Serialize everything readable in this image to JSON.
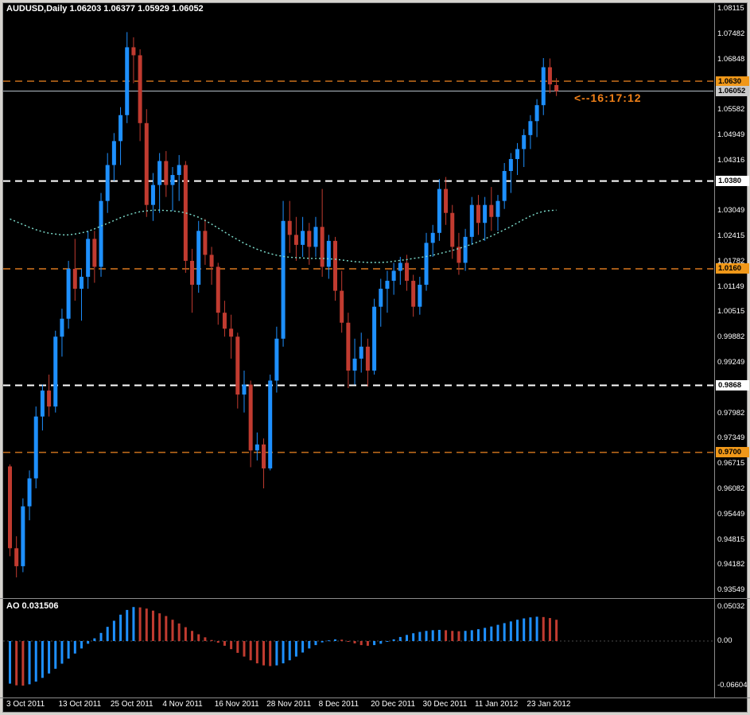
{
  "header": {
    "text": "AUDUSD,Daily  1.06203 1.06377 1.05929 1.06052"
  },
  "annotation": {
    "text": "<--16:17:12"
  },
  "ao_panel": {
    "label": "AO 0.031506",
    "axis_labels": [
      {
        "text": "0.05032",
        "value": 0.05032
      },
      {
        "text": "0.00",
        "value": 0
      },
      {
        "text": "-0.06604",
        "value": -0.06604
      }
    ]
  },
  "price_axis": {
    "plain_labels": [
      {
        "text": "1.08115",
        "value": 1.08115
      },
      {
        "text": "1.07482",
        "value": 1.07482
      },
      {
        "text": "1.06848",
        "value": 1.06848
      },
      {
        "text": "1.05582",
        "value": 1.05582
      },
      {
        "text": "1.04949",
        "value": 1.04949
      },
      {
        "text": "1.04316",
        "value": 1.04316
      },
      {
        "text": "1.03049",
        "value": 1.03049
      },
      {
        "text": "1.02415",
        "value": 1.02415
      },
      {
        "text": "1.01782",
        "value": 1.01782
      },
      {
        "text": "1.01149",
        "value": 1.01149
      },
      {
        "text": "1.00515",
        "value": 1.00515
      },
      {
        "text": "0.99882",
        "value": 0.99882
      },
      {
        "text": "0.99249",
        "value": 0.99249
      },
      {
        "text": "0.97982",
        "value": 0.97982
      },
      {
        "text": "0.97349",
        "value": 0.97349
      },
      {
        "text": "0.96715",
        "value": 0.96715
      },
      {
        "text": "0.96082",
        "value": 0.96082
      },
      {
        "text": "0.95449",
        "value": 0.95449
      },
      {
        "text": "0.94815",
        "value": 0.94815
      },
      {
        "text": "0.94182",
        "value": 0.94182
      },
      {
        "text": "0.93549",
        "value": 0.93549
      }
    ],
    "badges": [
      {
        "text": "1.0630",
        "value": 1.063,
        "bg": "#f09819"
      },
      {
        "text": "1.06052",
        "value": 1.06052,
        "bg": "#c9c9c9"
      },
      {
        "text": "1.0380",
        "value": 1.038,
        "bg": "#ffffff"
      },
      {
        "text": "1.0160",
        "value": 1.016,
        "bg": "#f09819"
      },
      {
        "text": "0.9868",
        "value": 0.9868,
        "bg": "#ffffff"
      },
      {
        "text": "0.9700",
        "value": 0.97,
        "bg": "#f09819"
      }
    ]
  },
  "date_axis": {
    "labels": [
      {
        "text": "3 Oct 2011",
        "bar": 0
      },
      {
        "text": "13 Oct 2011",
        "bar": 8
      },
      {
        "text": "25 Oct 2011",
        "bar": 16
      },
      {
        "text": "4 Nov 2011",
        "bar": 24
      },
      {
        "text": "16 Nov 2011",
        "bar": 32
      },
      {
        "text": "28 Nov 2011",
        "bar": 40
      },
      {
        "text": "8 Dec 2011",
        "bar": 48
      },
      {
        "text": "20 Dec 2011",
        "bar": 56
      },
      {
        "text": "30 Dec 2011",
        "bar": 64
      },
      {
        "text": "11 Jan 2012",
        "bar": 72
      },
      {
        "text": "23 Jan 2012",
        "bar": 80
      }
    ]
  },
  "colors": {
    "background": "#000000",
    "bull": "#1e90ff",
    "bear": "#c13b30",
    "ma": "#7fe0cf",
    "orange_line": "#d9791f",
    "white_line": "#ffffff",
    "price_line": "#b5c0c9",
    "axis_text": "#ffffff",
    "separator": "#8c8c8c",
    "frame": "#d6d3ce"
  },
  "chart_data": {
    "type": "candlestick",
    "symbol": "AUDUSD",
    "timeframe": "Daily",
    "title": "AUDUSD,Daily",
    "ohlc_display": {
      "open": "1.06203",
      "high": "1.06377",
      "low": "1.05929",
      "close": "1.06052"
    },
    "y_range": [
      0.93549,
      1.08115
    ],
    "x_labels": [
      "3 Oct 2011",
      "13 Oct 2011",
      "25 Oct 2011",
      "4 Nov 2011",
      "16 Nov 2011",
      "28 Nov 2011",
      "8 Dec 2011",
      "20 Dec 2011",
      "30 Dec 2011",
      "11 Jan 2012",
      "23 Jan 2012"
    ],
    "current_price": 1.06052,
    "levels": [
      {
        "value": 1.063,
        "style": "dashed",
        "color": "orange"
      },
      {
        "value": 1.038,
        "style": "dashed",
        "color": "white"
      },
      {
        "value": 1.016,
        "style": "dashed",
        "color": "orange"
      },
      {
        "value": 0.9868,
        "style": "dashed",
        "color": "white"
      },
      {
        "value": 0.97,
        "style": "dashed",
        "color": "orange"
      }
    ],
    "candles": [
      [
        0.9665,
        0.967,
        0.944,
        0.946
      ],
      [
        0.946,
        0.949,
        0.9387,
        0.9415
      ],
      [
        0.9415,
        0.9585,
        0.94,
        0.9565
      ],
      [
        0.9565,
        0.9655,
        0.953,
        0.9635
      ],
      [
        0.9635,
        0.9815,
        0.961,
        0.979
      ],
      [
        0.979,
        0.987,
        0.9755,
        0.9855
      ],
      [
        0.9855,
        0.9895,
        0.979,
        0.9815
      ],
      [
        0.9815,
        1.0005,
        0.98,
        0.999
      ],
      [
        0.999,
        1.006,
        0.994,
        1.0035
      ],
      [
        1.0035,
        1.018,
        1.001,
        1.016
      ],
      [
        1.016,
        1.0235,
        1.008,
        1.011
      ],
      [
        1.011,
        1.016,
        1.003,
        1.014
      ],
      [
        1.014,
        1.0255,
        1.011,
        1.0235
      ],
      [
        1.0235,
        1.0255,
        1.0125,
        1.0165
      ],
      [
        1.0165,
        1.035,
        1.014,
        1.033
      ],
      [
        1.033,
        1.045,
        1.03,
        1.042
      ],
      [
        1.042,
        1.05,
        1.038,
        1.048
      ],
      [
        1.048,
        1.0565,
        1.042,
        1.0545
      ],
      [
        1.0545,
        1.0753,
        1.0525,
        1.0715
      ],
      [
        1.0715,
        1.074,
        1.0625,
        1.0695
      ],
      [
        1.0695,
        1.071,
        1.048,
        1.0525
      ],
      [
        1.0525,
        1.056,
        1.029,
        1.032
      ],
      [
        1.032,
        1.04,
        1.028,
        1.037
      ],
      [
        1.037,
        1.045,
        1.03,
        1.043
      ],
      [
        1.043,
        1.0455,
        1.034,
        1.037
      ],
      [
        1.037,
        1.0415,
        1.0305,
        1.0395
      ],
      [
        1.0395,
        1.0445,
        1.033,
        1.042
      ],
      [
        1.042,
        1.043,
        1.015,
        1.018
      ],
      [
        1.018,
        1.021,
        1.005,
        1.012
      ],
      [
        1.012,
        1.028,
        1.01,
        1.0255
      ],
      [
        1.0255,
        1.0285,
        1.017,
        1.0195
      ],
      [
        1.0195,
        1.0215,
        1.012,
        1.0165
      ],
      [
        1.0165,
        1.0175,
        1.002,
        1.005
      ],
      [
        1.005,
        1.008,
        0.999,
        1.001
      ],
      [
        1.001,
        1.0045,
        0.9935,
        0.999
      ],
      [
        0.999,
        1.0,
        0.981,
        0.9845
      ],
      [
        0.9845,
        0.9905,
        0.98,
        0.987
      ],
      [
        0.987,
        0.988,
        0.9663,
        0.9705
      ],
      [
        0.9705,
        0.975,
        0.968,
        0.972
      ],
      [
        0.972,
        0.9735,
        0.961,
        0.966
      ],
      [
        0.966,
        0.9895,
        0.9655,
        0.988
      ],
      [
        0.988,
        1.0015,
        0.985,
        0.9985
      ],
      [
        0.9985,
        1.033,
        0.9965,
        1.028
      ],
      [
        1.028,
        1.033,
        1.02,
        1.0245
      ],
      [
        1.0245,
        1.029,
        1.018,
        1.022
      ],
      [
        1.022,
        1.029,
        1.019,
        1.0255
      ],
      [
        1.0255,
        1.0275,
        1.017,
        1.0215
      ],
      [
        1.0215,
        1.029,
        1.019,
        1.0265
      ],
      [
        1.0265,
        1.036,
        1.014,
        1.0165
      ],
      [
        1.0165,
        1.0245,
        1.0135,
        1.023
      ],
      [
        1.023,
        1.024,
        1.008,
        1.0105
      ],
      [
        1.0105,
        1.0155,
        1.0,
        1.0025
      ],
      [
        1.0025,
        1.005,
        0.9861,
        0.9905
      ],
      [
        0.9905,
        0.9985,
        0.987,
        0.9935
      ],
      [
        0.9935,
        1.0,
        0.99,
        0.9965
      ],
      [
        0.9965,
        0.9985,
        0.9865,
        0.9905
      ],
      [
        0.9905,
        1.0085,
        0.9895,
        1.0065
      ],
      [
        1.0065,
        1.0135,
        1.0015,
        1.011
      ],
      [
        1.011,
        1.0155,
        1.005,
        1.013
      ],
      [
        1.013,
        1.0175,
        1.0095,
        1.0155
      ],
      [
        1.0155,
        1.019,
        1.012,
        1.0175
      ],
      [
        1.0175,
        1.0195,
        1.0105,
        1.013
      ],
      [
        1.013,
        1.0145,
        1.004,
        1.0065
      ],
      [
        1.0065,
        1.014,
        1.0045,
        1.012
      ],
      [
        1.012,
        1.025,
        1.0105,
        1.0225
      ],
      [
        1.0225,
        1.027,
        1.019,
        1.025
      ],
      [
        1.025,
        1.0385,
        1.023,
        1.036
      ],
      [
        1.036,
        1.039,
        1.027,
        1.03
      ],
      [
        1.03,
        1.032,
        1.0185,
        1.0215
      ],
      [
        1.0215,
        1.025,
        1.0145,
        1.0175
      ],
      [
        1.0175,
        1.026,
        1.0155,
        1.024
      ],
      [
        1.024,
        1.034,
        1.022,
        1.032
      ],
      [
        1.032,
        1.0345,
        1.0245,
        1.0275
      ],
      [
        1.0275,
        1.034,
        1.023,
        1.032
      ],
      [
        1.032,
        1.0365,
        1.0255,
        1.029
      ],
      [
        1.029,
        1.0345,
        1.0255,
        1.033
      ],
      [
        1.033,
        1.0425,
        1.031,
        1.0405
      ],
      [
        1.0405,
        1.045,
        1.035,
        1.0435
      ],
      [
        1.0435,
        1.0475,
        1.0395,
        1.046
      ],
      [
        1.046,
        1.051,
        1.0415,
        1.0495
      ],
      [
        1.0495,
        1.0545,
        1.046,
        1.053
      ],
      [
        1.053,
        1.0585,
        1.049,
        1.057
      ],
      [
        1.057,
        1.0688,
        1.0545,
        1.0665
      ],
      [
        1.0665,
        1.0687,
        1.06,
        1.0622
      ],
      [
        1.06203,
        1.06377,
        1.05929,
        1.06052
      ]
    ],
    "overlays": {
      "ma_dotted": [
        1.0285,
        1.0278,
        1.0271,
        1.0264,
        1.0258,
        1.0253,
        1.0249,
        1.0247,
        1.0245,
        1.0245,
        1.0247,
        1.025,
        1.0254,
        1.026,
        1.0267,
        1.0274,
        1.0281,
        1.0288,
        1.0294,
        1.0299,
        1.0303,
        1.0305,
        1.0307,
        1.0307,
        1.0306,
        1.0305,
        1.0303,
        1.03,
        1.0295,
        1.0289,
        1.0281,
        1.0272,
        1.0262,
        1.0252,
        1.0242,
        1.0233,
        1.0224,
        1.0216,
        1.0209,
        1.0203,
        1.0198,
        1.0194,
        1.0191,
        1.0189,
        1.0188,
        1.0187,
        1.0186,
        1.0186,
        1.0186,
        1.0185,
        1.0184,
        1.0182,
        1.018,
        1.0178,
        1.0177,
        1.0176,
        1.0176,
        1.0176,
        1.0177,
        1.0179,
        1.0181,
        1.0183,
        1.0186,
        1.0188,
        1.0191,
        1.0194,
        1.0198,
        1.0202,
        1.0206,
        1.0211,
        1.0216,
        1.0222,
        1.0228,
        1.0235,
        1.0242,
        1.025,
        1.0258,
        1.0266,
        1.0275,
        1.0284,
        1.0292,
        1.0299,
        1.0304,
        1.0306,
        1.0307
      ]
    },
    "indicator": {
      "name": "AO",
      "current_value": "0.031506",
      "range": [
        -0.06604,
        0.05032
      ],
      "values": [
        -0.063,
        -0.0655,
        -0.066,
        -0.064,
        -0.06,
        -0.0545,
        -0.048,
        -0.041,
        -0.0335,
        -0.026,
        -0.0185,
        -0.011,
        -0.004,
        0.004,
        0.012,
        0.021,
        0.03,
        0.039,
        0.046,
        0.0503,
        0.0498,
        0.048,
        0.045,
        0.041,
        0.037,
        0.0315,
        0.026,
        0.0205,
        0.015,
        0.01,
        0.0055,
        0.0015,
        -0.0025,
        -0.007,
        -0.012,
        -0.0175,
        -0.023,
        -0.0285,
        -0.033,
        -0.036,
        -0.037,
        -0.036,
        -0.033,
        -0.0285,
        -0.023,
        -0.017,
        -0.011,
        -0.006,
        -0.002,
        0.001,
        0.0025,
        0.002,
        -0.0005,
        -0.0035,
        -0.006,
        -0.007,
        -0.006,
        -0.004,
        -0.001,
        0.0025,
        0.006,
        0.009,
        0.0115,
        0.0135,
        0.015,
        0.016,
        0.0165,
        0.016,
        0.015,
        0.0145,
        0.015,
        0.016,
        0.0175,
        0.0195,
        0.0215,
        0.024,
        0.0265,
        0.029,
        0.0315,
        0.0335,
        0.035,
        0.036,
        0.0355,
        0.034,
        0.0315
      ]
    }
  }
}
